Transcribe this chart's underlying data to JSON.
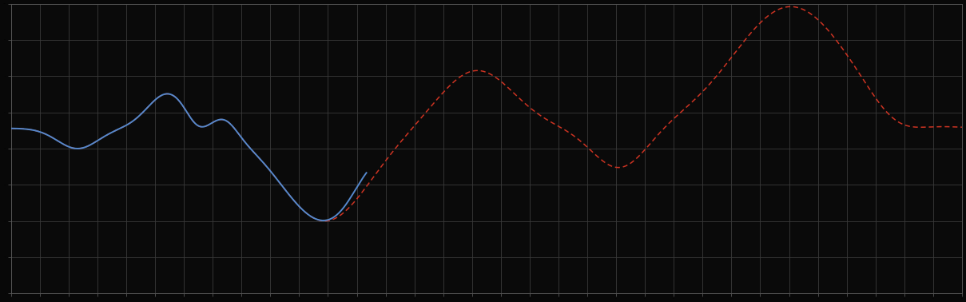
{
  "background_color": "#080808",
  "plot_bg_color": "#0a0a0a",
  "grid_color": "#3a3a3a",
  "blue_color": "#5588cc",
  "red_color": "#cc3322",
  "figsize": [
    12.09,
    3.78
  ],
  "dpi": 100,
  "spine_color": "#555555",
  "tick_color": "#555555",
  "n_xticks": 34,
  "n_yticks": 9,
  "xlim": [
    0,
    99
  ],
  "ylim": [
    0,
    100
  ]
}
